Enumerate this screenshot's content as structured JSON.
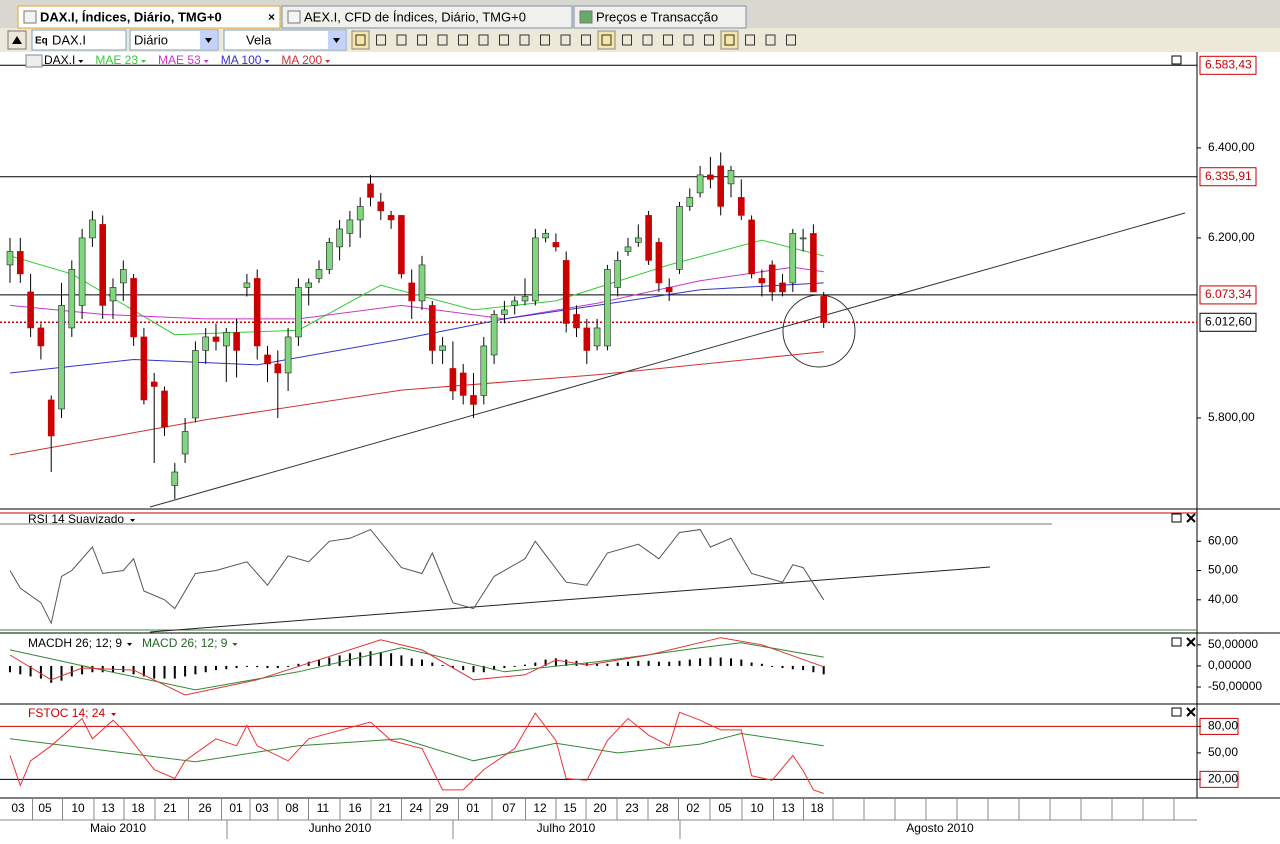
{
  "tabs": [
    "DAX.I, Índices, Diário, TMG+0",
    "AEX.I, CFD de Índices, Diário, TMG+0",
    "Preços e Transacção"
  ],
  "toolbar": {
    "icon_label": "Eq",
    "symbol": "DAX.I",
    "period": "Diário",
    "style": "Vela"
  },
  "price_panel": {
    "legend": [
      {
        "name": "DAX.I",
        "color": "#000000"
      },
      {
        "name": "MAE 23",
        "color": "#33cc33",
        "points": [
          [
            0,
            6160
          ],
          [
            6,
            6120
          ],
          [
            16,
            5985
          ],
          [
            28,
            5995
          ],
          [
            36,
            6095
          ],
          [
            45,
            6040
          ],
          [
            53,
            6060
          ],
          [
            64,
            6140
          ],
          [
            73,
            6195
          ],
          [
            79,
            6160
          ]
        ]
      },
      {
        "name": "MAE 53",
        "color": "#cc33cc",
        "points": [
          [
            0,
            6050
          ],
          [
            9,
            6030
          ],
          [
            19,
            6020
          ],
          [
            28,
            6020
          ],
          [
            38,
            6050
          ],
          [
            48,
            6020
          ],
          [
            57,
            6055
          ],
          [
            67,
            6105
          ],
          [
            76,
            6135
          ],
          [
            79,
            6125
          ]
        ]
      },
      {
        "name": "MA 100",
        "color": "#3333cc",
        "points": [
          [
            0,
            5900
          ],
          [
            12,
            5930
          ],
          [
            24,
            5918
          ],
          [
            38,
            5975
          ],
          [
            48,
            6020
          ],
          [
            57,
            6050
          ],
          [
            67,
            6085
          ],
          [
            79,
            6100
          ]
        ]
      },
      {
        "name": "MA 200",
        "color": "#cc3333",
        "points": [
          [
            0,
            5718
          ],
          [
            19,
            5796
          ],
          [
            38,
            5862
          ],
          [
            57,
            5896
          ],
          [
            79,
            5947
          ]
        ]
      }
    ],
    "ylim": [
      5600,
      6613
    ],
    "yticks": [
      {
        "value": 6400,
        "label": "6.400,00"
      },
      {
        "value": 6200,
        "label": "6.200,00"
      },
      {
        "value": 5800,
        "label": "5.800,00"
      }
    ],
    "levels": [
      {
        "value": 6583.43,
        "label": "6.583,43",
        "color": "#cc0000"
      },
      {
        "value": 6335.91,
        "label": "6.335,91",
        "color": "#cc0000"
      },
      {
        "value": 6073.34,
        "label": "6.073,34",
        "color": "#cc0000"
      },
      {
        "value": 6012.6,
        "label": "6.012,60",
        "color": "#000000"
      }
    ],
    "up_color": "#7fd67f",
    "down_color": "#cc0000",
    "candles": [
      [
        6140,
        6200,
        6100,
        6170
      ],
      [
        6170,
        6200,
        6100,
        6120
      ],
      [
        6080,
        6120,
        5980,
        6000
      ],
      [
        6000,
        6010,
        5930,
        5960
      ],
      [
        5840,
        5850,
        5680,
        5760
      ],
      [
        5820,
        6100,
        5800,
        6050
      ],
      [
        6000,
        6150,
        5980,
        6130
      ],
      [
        6050,
        6220,
        6020,
        6200
      ],
      [
        6200,
        6260,
        6180,
        6240
      ],
      [
        6230,
        6250,
        6020,
        6050
      ],
      [
        6060,
        6110,
        6020,
        6090
      ],
      [
        6100,
        6150,
        6060,
        6130
      ],
      [
        6110,
        6120,
        5960,
        5980
      ],
      [
        5980,
        6000,
        5830,
        5840
      ],
      [
        5880,
        5900,
        5700,
        5870
      ],
      [
        5860,
        5870,
        5760,
        5780
      ],
      [
        5650,
        5700,
        5620,
        5680
      ],
      [
        5720,
        5800,
        5700,
        5770
      ],
      [
        5800,
        5970,
        5790,
        5950
      ],
      [
        5950,
        6000,
        5920,
        5980
      ],
      [
        5980,
        6010,
        5950,
        5970
      ],
      [
        5960,
        6000,
        5880,
        5990
      ],
      [
        5990,
        6020,
        5890,
        5950
      ],
      [
        6090,
        6120,
        6070,
        6100
      ],
      [
        6110,
        6130,
        5930,
        5960
      ],
      [
        5940,
        5960,
        5880,
        5920
      ],
      [
        5920,
        5950,
        5800,
        5900
      ],
      [
        5900,
        6000,
        5860,
        5980
      ],
      [
        5980,
        6110,
        5960,
        6090
      ],
      [
        6090,
        6110,
        6050,
        6100
      ],
      [
        6110,
        6150,
        6100,
        6130
      ],
      [
        6130,
        6200,
        6120,
        6190
      ],
      [
        6180,
        6240,
        6150,
        6220
      ],
      [
        6210,
        6260,
        6180,
        6240
      ],
      [
        6240,
        6290,
        6200,
        6270
      ],
      [
        6320,
        6340,
        6270,
        6290
      ],
      [
        6280,
        6300,
        6240,
        6260
      ],
      [
        6250,
        6260,
        6220,
        6240
      ],
      [
        6250,
        6250,
        6110,
        6120
      ],
      [
        6100,
        6130,
        6020,
        6060
      ],
      [
        6060,
        6160,
        6040,
        6140
      ],
      [
        6050,
        6060,
        5920,
        5950
      ],
      [
        5950,
        5980,
        5920,
        5960
      ],
      [
        5910,
        5970,
        5840,
        5860
      ],
      [
        5900,
        5920,
        5830,
        5850
      ],
      [
        5850,
        5900,
        5800,
        5830
      ],
      [
        5850,
        5980,
        5830,
        5960
      ],
      [
        5940,
        6040,
        5920,
        6030
      ],
      [
        6030,
        6060,
        6010,
        6040
      ],
      [
        6050,
        6070,
        6030,
        6060
      ],
      [
        6060,
        6110,
        6050,
        6070
      ],
      [
        6060,
        6220,
        6050,
        6200
      ],
      [
        6200,
        6220,
        6190,
        6210
      ],
      [
        6190,
        6210,
        6170,
        6180
      ],
      [
        6150,
        6170,
        5990,
        6010
      ],
      [
        6030,
        6050,
        5980,
        6000
      ],
      [
        6000,
        6020,
        5920,
        5950
      ],
      [
        5960,
        6020,
        5950,
        6000
      ],
      [
        5960,
        6140,
        5950,
        6130
      ],
      [
        6090,
        6170,
        6070,
        6150
      ],
      [
        6170,
        6200,
        6160,
        6180
      ],
      [
        6190,
        6230,
        6180,
        6200
      ],
      [
        6250,
        6260,
        6140,
        6150
      ],
      [
        6190,
        6200,
        6080,
        6100
      ],
      [
        6090,
        6110,
        6060,
        6080
      ],
      [
        6130,
        6280,
        6120,
        6270
      ],
      [
        6270,
        6310,
        6260,
        6290
      ],
      [
        6300,
        6360,
        6290,
        6340
      ],
      [
        6340,
        6380,
        6310,
        6330
      ],
      [
        6360,
        6390,
        6250,
        6270
      ],
      [
        6320,
        6360,
        6290,
        6350
      ],
      [
        6290,
        6330,
        6240,
        6250
      ],
      [
        6240,
        6250,
        6110,
        6120
      ],
      [
        6110,
        6130,
        6070,
        6100
      ],
      [
        6140,
        6150,
        6060,
        6080
      ],
      [
        6100,
        6120,
        6070,
        6080
      ],
      [
        6100,
        6220,
        6080,
        6210
      ],
      [
        6200,
        6220,
        6170,
        6200
      ],
      [
        6210,
        6230,
        6080,
        6080
      ],
      [
        6070,
        6080,
        6000,
        6012.6
      ]
    ]
  },
  "rsi": {
    "title": "RSI 14 Suavizado",
    "color": "#555555",
    "ylim": [
      29,
      70
    ],
    "yticks": [
      {
        "value": 60,
        "label": "60,00"
      },
      {
        "value": 50,
        "label": "50,00"
      },
      {
        "value": 40,
        "label": "40,00"
      }
    ],
    "points": [
      [
        0,
        50
      ],
      [
        1,
        44
      ],
      [
        3,
        39
      ],
      [
        4,
        32
      ],
      [
        5,
        48
      ],
      [
        6,
        50
      ],
      [
        8,
        58
      ],
      [
        9,
        49
      ],
      [
        11,
        50
      ],
      [
        12,
        54
      ],
      [
        13,
        43
      ],
      [
        15,
        40
      ],
      [
        16,
        37
      ],
      [
        18,
        49
      ],
      [
        20,
        50
      ],
      [
        23,
        53
      ],
      [
        25,
        45
      ],
      [
        27,
        55
      ],
      [
        29,
        53
      ],
      [
        31,
        60
      ],
      [
        33,
        61
      ],
      [
        35,
        64
      ],
      [
        38,
        51
      ],
      [
        40,
        49
      ],
      [
        41,
        56
      ],
      [
        43,
        39
      ],
      [
        45,
        37
      ],
      [
        47,
        48
      ],
      [
        50,
        54
      ],
      [
        51,
        60
      ],
      [
        54,
        46
      ],
      [
        56,
        45
      ],
      [
        58,
        56
      ],
      [
        61,
        59
      ],
      [
        63,
        54
      ],
      [
        65,
        63
      ],
      [
        67,
        64
      ],
      [
        68,
        58
      ],
      [
        70,
        61
      ],
      [
        72,
        49
      ],
      [
        75,
        46
      ],
      [
        76,
        52
      ],
      [
        77,
        51
      ],
      [
        79,
        40
      ]
    ]
  },
  "macd": {
    "titles": [
      "MACDH 26; 12; 9",
      "MACD 26; 12; 9"
    ],
    "ylim": [
      -88,
      71
    ],
    "yticks": [
      {
        "value": 50,
        "label": "50,00000"
      },
      {
        "value": 0,
        "label": "0,00000"
      },
      {
        "value": -50,
        "label": "-50,00000"
      }
    ],
    "histogram": [
      -15,
      -20,
      -25,
      -30,
      -40,
      -35,
      -25,
      -20,
      -15,
      -15,
      -15,
      -15,
      -20,
      -25,
      -30,
      -30,
      -30,
      -25,
      -20,
      -15,
      -10,
      -8,
      -5,
      0,
      -3,
      -5,
      -5,
      0,
      5,
      10,
      15,
      20,
      25,
      30,
      32,
      35,
      33,
      30,
      25,
      18,
      15,
      8,
      2,
      -5,
      -10,
      -15,
      -15,
      -10,
      -5,
      0,
      3,
      8,
      15,
      18,
      15,
      12,
      8,
      5,
      5,
      8,
      10,
      12,
      12,
      10,
      10,
      12,
      15,
      18,
      20,
      20,
      18,
      15,
      8,
      5,
      0,
      -5,
      -8,
      -10,
      -15,
      -20
    ],
    "macd_color": "#dd3333",
    "signal_color": "#338833",
    "macd_points": [
      [
        0,
        26
      ],
      [
        4,
        -33
      ],
      [
        7,
        -5
      ],
      [
        12,
        -10
      ],
      [
        17,
        -69
      ],
      [
        24,
        -33
      ],
      [
        36,
        62
      ],
      [
        40,
        38
      ],
      [
        45,
        -33
      ],
      [
        50,
        -21
      ],
      [
        53,
        14
      ],
      [
        56,
        2
      ],
      [
        62,
        26
      ],
      [
        69,
        67
      ],
      [
        73,
        50
      ],
      [
        79,
        -2
      ]
    ],
    "signal_points": [
      [
        0,
        38
      ],
      [
        9,
        -10
      ],
      [
        18,
        -57
      ],
      [
        28,
        -14
      ],
      [
        38,
        43
      ],
      [
        48,
        -14
      ],
      [
        57,
        10
      ],
      [
        67,
        43
      ],
      [
        71,
        55
      ],
      [
        79,
        21
      ]
    ]
  },
  "fstoc": {
    "title": "FSTOC 14; 24",
    "ylim": [
      0,
      102
    ],
    "yticks": [
      {
        "value": 80,
        "label": "80,00"
      },
      {
        "value": 50,
        "label": "50,00"
      },
      {
        "value": 20,
        "label": "20,00"
      }
    ],
    "k_color": "#ee3333",
    "d_color": "#338833",
    "k_points": [
      [
        0,
        47
      ],
      [
        1,
        13
      ],
      [
        2,
        41
      ],
      [
        4,
        58
      ],
      [
        7,
        89
      ],
      [
        8,
        66
      ],
      [
        10,
        87
      ],
      [
        11,
        76
      ],
      [
        14,
        31
      ],
      [
        16,
        21
      ],
      [
        17,
        41
      ],
      [
        20,
        66
      ],
      [
        22,
        58
      ],
      [
        23,
        81
      ],
      [
        24,
        58
      ],
      [
        27,
        41
      ],
      [
        29,
        66
      ],
      [
        35,
        85
      ],
      [
        37,
        64
      ],
      [
        40,
        55
      ],
      [
        42,
        8
      ],
      [
        44,
        8
      ],
      [
        46,
        31
      ],
      [
        49,
        55
      ],
      [
        51,
        95
      ],
      [
        53,
        64
      ],
      [
        54,
        21
      ],
      [
        56,
        19
      ],
      [
        58,
        64
      ],
      [
        60,
        89
      ],
      [
        62,
        70
      ],
      [
        64,
        58
      ],
      [
        65,
        96
      ],
      [
        67,
        87
      ],
      [
        69,
        76
      ],
      [
        71,
        76
      ],
      [
        72,
        24
      ],
      [
        74,
        19
      ],
      [
        76,
        47
      ],
      [
        77,
        30
      ],
      [
        78,
        8
      ],
      [
        79,
        4
      ]
    ],
    "d_points": [
      [
        0,
        66
      ],
      [
        9,
        53
      ],
      [
        18,
        40
      ],
      [
        28,
        58
      ],
      [
        38,
        66
      ],
      [
        45,
        41
      ],
      [
        53,
        61
      ],
      [
        59,
        50
      ],
      [
        67,
        60
      ],
      [
        71,
        72
      ],
      [
        79,
        58
      ]
    ]
  },
  "date_axis": {
    "days": [
      "03",
      "05",
      "10",
      "13",
      "18",
      "21",
      "26",
      "01",
      "03",
      "08",
      "11",
      "16",
      "21",
      "24",
      "29",
      "01",
      "07",
      "12",
      "15",
      "20",
      "23",
      "28",
      "02",
      "05",
      "10",
      "13",
      "18"
    ],
    "months": [
      "Maio 2010",
      "Junho 2010",
      "Julho 2010",
      "Agosto 2010"
    ]
  }
}
